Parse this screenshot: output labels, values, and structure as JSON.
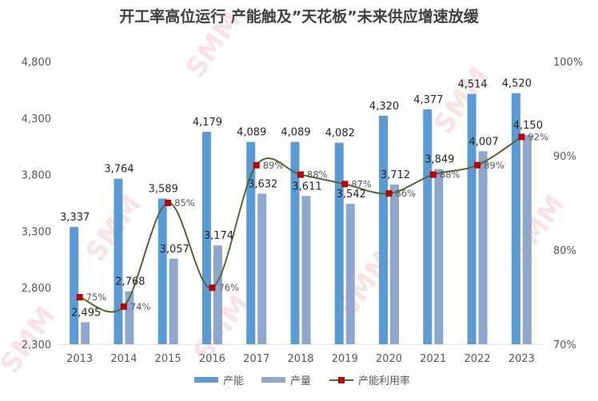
{
  "chart_data": {
    "type": "bar",
    "title": "开工率高位运行 产能触及”天花板”未来供应增速放缓",
    "categories": [
      "2013",
      "2014",
      "2015",
      "2016",
      "2017",
      "2018",
      "2019",
      "2020",
      "2021",
      "2022",
      "2023"
    ],
    "series": [
      {
        "name": "产能",
        "type": "bar",
        "color": "#5b9bd5",
        "values": [
          3337,
          3764,
          3589,
          4179,
          4089,
          4089,
          4082,
          4320,
          4377,
          4514,
          4520
        ],
        "labels": [
          "3,337",
          "3,764",
          "3,589",
          "4,179",
          "4,089",
          "4,089",
          "4,082",
          "4,320",
          "4,377",
          "4,514",
          "4,520"
        ]
      },
      {
        "name": "产量",
        "type": "bar",
        "color": "#8fa7cf",
        "values": [
          2495,
          2768,
          3057,
          3174,
          3632,
          3611,
          3542,
          3712,
          3849,
          4007,
          4150
        ],
        "labels": [
          "2,495",
          "2,768",
          "3,057",
          "3,174",
          "3,632",
          "3,611",
          "3,542",
          "3,712",
          "3,849",
          "4,007",
          "4,150"
        ]
      },
      {
        "name": "产能利用率",
        "type": "line",
        "axis": "right",
        "color": "#4e6b2f",
        "marker_color": "#c00000",
        "values": [
          75,
          74,
          85,
          76,
          89,
          88,
          87,
          86,
          88,
          89,
          92
        ],
        "labels": [
          "75%",
          "74%",
          "85%",
          "76%",
          "89%",
          "88%",
          "87%",
          "86%",
          "88%",
          "89%",
          "92%"
        ]
      }
    ],
    "ylim": [
      2300,
      4800
    ],
    "yticks": [
      2300,
      2800,
      3300,
      3800,
      4300,
      4800
    ],
    "ytick_labels": [
      "2,300",
      "2,800",
      "3,300",
      "3,800",
      "4,300",
      "4,800"
    ],
    "y2lim": [
      70,
      100
    ],
    "y2ticks": [
      70,
      80,
      90,
      100
    ],
    "y2tick_labels": [
      "70%",
      "80%",
      "90%",
      "100%"
    ],
    "legend_position": "bottom",
    "watermark": "SMM"
  }
}
